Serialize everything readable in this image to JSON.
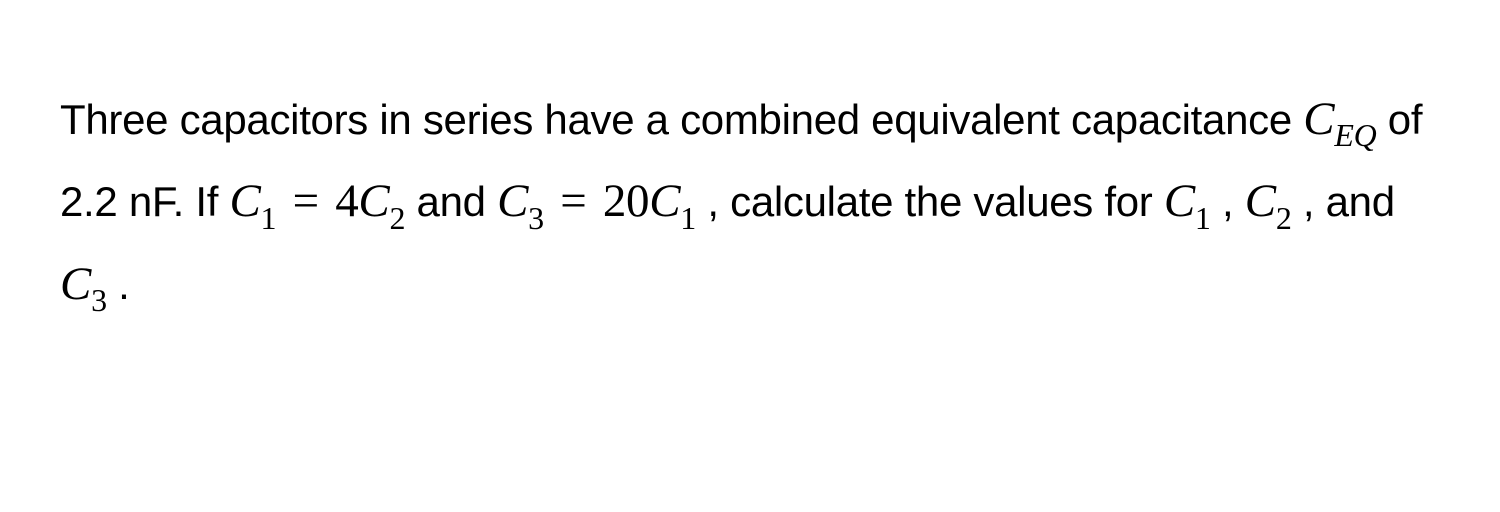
{
  "text": {
    "part1": "Three capacitors in series have a combined equivalent capacitance ",
    "part2": " of 2.2 nF. If ",
    "part3": " and ",
    "part4": " , calculate the values for ",
    "part5": " , ",
    "part6": " , and ",
    "part7": " ."
  },
  "math": {
    "C": "C",
    "sub_EQ": "EQ",
    "sub_1": "1",
    "sub_2": "2",
    "sub_3": "3",
    "eq": "=",
    "coef_4": "4",
    "coef_20": "20"
  },
  "style": {
    "background_color": "#ffffff",
    "text_color": "#000000",
    "body_fontsize": 42,
    "math_fontsize": 47,
    "subscript_fontsize": 32,
    "line_height": 1.75,
    "body_font": "Arial, Helvetica, sans-serif",
    "math_font": "Times New Roman, Times, serif"
  }
}
